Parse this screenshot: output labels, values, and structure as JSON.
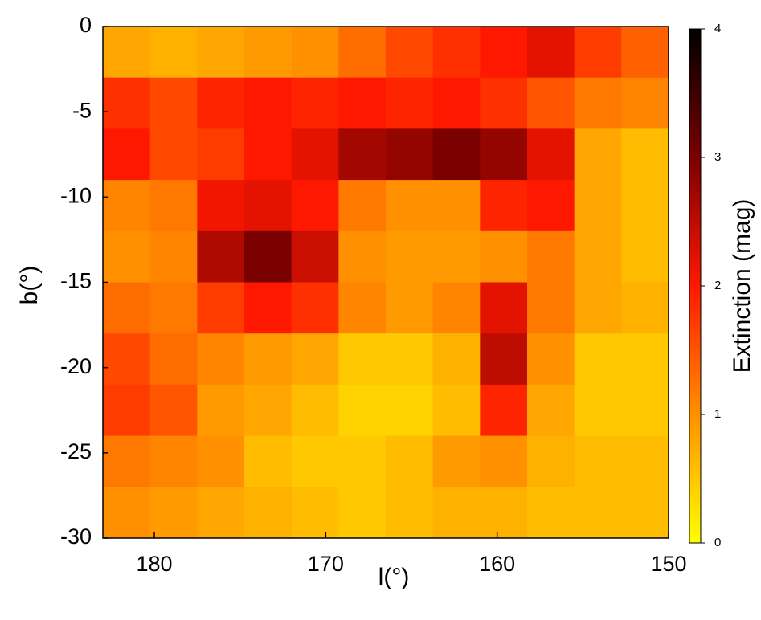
{
  "chart_data": {
    "type": "heatmap",
    "x_label": "l(°)",
    "y_label": "b(°)",
    "colorbar_label": "Extinction (mag)",
    "xbins": [
      183,
      180.25,
      177.5,
      174.75,
      172,
      169.25,
      166.5,
      163.75,
      161,
      158.25,
      155.5,
      152.75,
      150
    ],
    "ybins": [
      0,
      -3,
      -6,
      -9,
      -12,
      -15,
      -18,
      -21,
      -24,
      -27,
      -30
    ],
    "values": [
      [
        0.8,
        0.7,
        0.8,
        0.9,
        1.0,
        1.3,
        1.6,
        1.8,
        2.0,
        2.2,
        1.7,
        1.4
      ],
      [
        1.8,
        1.6,
        1.9,
        2.0,
        1.9,
        2.0,
        1.9,
        2.0,
        1.8,
        1.5,
        1.2,
        1.1
      ],
      [
        2.0,
        1.6,
        1.7,
        2.0,
        2.2,
        2.7,
        2.8,
        3.0,
        2.8,
        2.2,
        0.8,
        0.6
      ],
      [
        1.1,
        1.2,
        2.1,
        2.2,
        2.0,
        1.2,
        1.0,
        1.0,
        1.9,
        2.0,
        0.8,
        0.6
      ],
      [
        1.0,
        1.1,
        2.6,
        3.0,
        2.4,
        1.0,
        0.9,
        0.9,
        1.0,
        1.2,
        0.8,
        0.6
      ],
      [
        1.3,
        1.2,
        1.7,
        2.0,
        1.8,
        1.1,
        0.9,
        1.1,
        2.2,
        1.2,
        0.8,
        0.7
      ],
      [
        1.6,
        1.3,
        1.1,
        0.9,
        0.8,
        0.5,
        0.5,
        0.7,
        2.5,
        1.0,
        0.5,
        0.5
      ],
      [
        1.7,
        1.5,
        0.9,
        0.8,
        0.6,
        0.4,
        0.4,
        0.6,
        1.9,
        0.8,
        0.5,
        0.5
      ],
      [
        1.2,
        1.1,
        1.0,
        0.6,
        0.5,
        0.5,
        0.6,
        0.9,
        1.0,
        0.7,
        0.6,
        0.6
      ],
      [
        1.0,
        0.9,
        0.8,
        0.7,
        0.6,
        0.5,
        0.6,
        0.7,
        0.7,
        0.6,
        0.6,
        0.6
      ]
    ],
    "xlim": [
      183,
      150
    ],
    "ylim": [
      -30,
      0
    ],
    "xticks": [
      180,
      170,
      160,
      150
    ],
    "yticks": [
      0,
      -5,
      -10,
      -15,
      -20,
      -25,
      -30
    ],
    "clim": [
      0,
      4
    ],
    "cticks": [
      0,
      1,
      2,
      3,
      4
    ],
    "colorscale": [
      "#ffff00",
      "#ff9000",
      "#ff1800",
      "#7a0000",
      "#000000"
    ]
  }
}
